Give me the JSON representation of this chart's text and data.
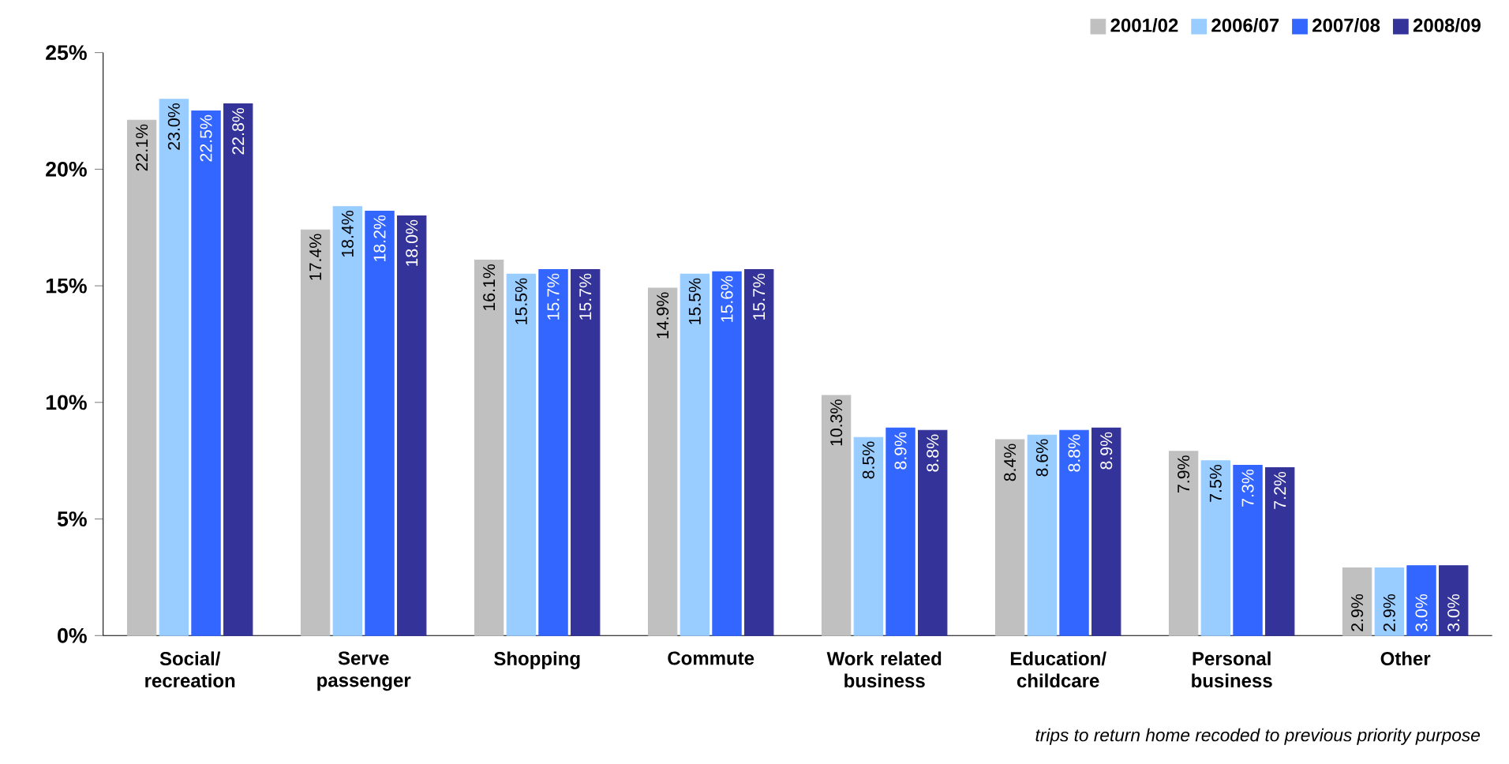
{
  "chart_data": {
    "type": "bar",
    "categories": [
      "Social/ recreation",
      "Serve passenger",
      "Shopping",
      "Commute",
      "Work related business",
      "Education/ childcare",
      "Personal business",
      "Other"
    ],
    "series": [
      {
        "name": "2001/02",
        "color": "#c0c0c0",
        "values": [
          22.1,
          17.4,
          16.1,
          14.9,
          10.3,
          8.4,
          7.9,
          2.9
        ],
        "value_labels": [
          "22.1%",
          "17.4%",
          "16.1%",
          "14.9%",
          "10.3%",
          "8.4%",
          "7.9%",
          "2.9%"
        ]
      },
      {
        "name": "2006/07",
        "color": "#99ccff",
        "values": [
          23.0,
          18.4,
          15.5,
          15.5,
          8.5,
          8.6,
          7.5,
          2.9
        ],
        "value_labels": [
          "23.0%",
          "18.4%",
          "15.5%",
          "15.5%",
          "8.5%",
          "8.6%",
          "7.5%",
          "2.9%"
        ]
      },
      {
        "name": "2007/08",
        "color": "#3366ff",
        "values": [
          22.5,
          18.2,
          15.7,
          15.6,
          8.9,
          8.8,
          7.3,
          3.0
        ],
        "value_labels": [
          "22.5%",
          "18.2%",
          "15.7%",
          "15.6%",
          "8.9%",
          "8.8%",
          "7.3%",
          "3.0%"
        ]
      },
      {
        "name": "2008/09",
        "color": "#333399",
        "values": [
          22.8,
          18.0,
          15.7,
          15.7,
          8.8,
          8.9,
          7.2,
          3.0
        ],
        "value_labels": [
          "22.8%",
          "18.0%",
          "15.7%",
          "15.7%",
          "8.8%",
          "8.9%",
          "7.2%",
          "3.0%"
        ]
      }
    ],
    "ylim": [
      0,
      25
    ],
    "yticks": [
      {
        "value": 0,
        "label": "0%"
      },
      {
        "value": 5,
        "label": "5%"
      },
      {
        "value": 10,
        "label": "10%"
      },
      {
        "value": 15,
        "label": "15%"
      },
      {
        "value": 20,
        "label": "20%"
      },
      {
        "value": 25,
        "label": "25%"
      }
    ],
    "legend": "top right",
    "grid": false,
    "annotations": [
      "trips to return home recoded to previous priority purpose"
    ]
  }
}
